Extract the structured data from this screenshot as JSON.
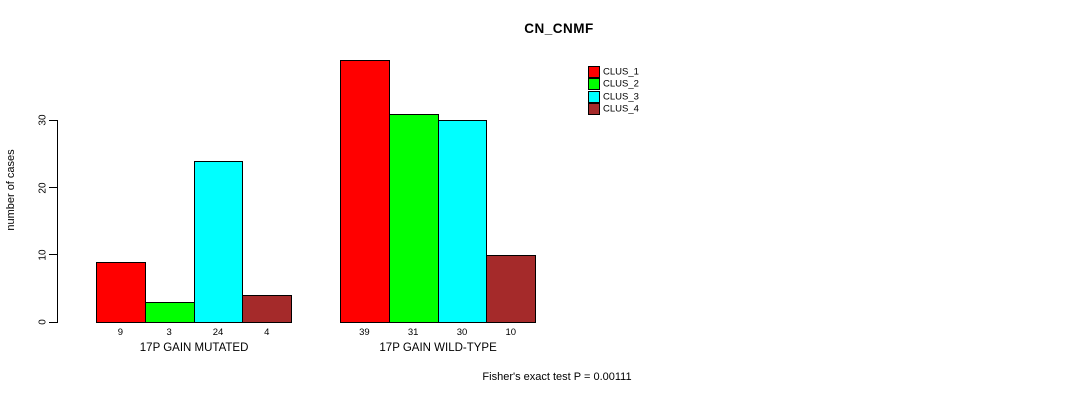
{
  "chart_data": {
    "type": "bar",
    "title": "CN_CNMF",
    "ylabel": "number of cases",
    "xlabel": "",
    "categories": [
      "17P GAIN MUTATED",
      "17P GAIN WILD-TYPE"
    ],
    "series": [
      {
        "name": "CLUS_1",
        "color": "#FF0000",
        "values": [
          9,
          39
        ]
      },
      {
        "name": "CLUS_2",
        "color": "#00FF00",
        "values": [
          3,
          31
        ]
      },
      {
        "name": "CLUS_3",
        "color": "#00FFFF",
        "values": [
          24,
          30
        ]
      },
      {
        "name": "CLUS_4",
        "color": "#A52A2A",
        "values": [
          4,
          10
        ]
      }
    ],
    "bar_value_labels": [
      [
        "9",
        "3",
        "24",
        "4"
      ],
      [
        "39",
        "31",
        "30",
        "10"
      ]
    ],
    "yticks": [
      0,
      10,
      20,
      30
    ],
    "ylim": [
      0,
      30
    ],
    "grid": false,
    "legend": {
      "position": "top-right",
      "entries": [
        "CLUS_1",
        "CLUS_2",
        "CLUS_3",
        "CLUS_4"
      ]
    },
    "footnote": "Fisher's exact test P = 0.00111",
    "background": "#FFFFFF",
    "text_color": "#000000"
  }
}
